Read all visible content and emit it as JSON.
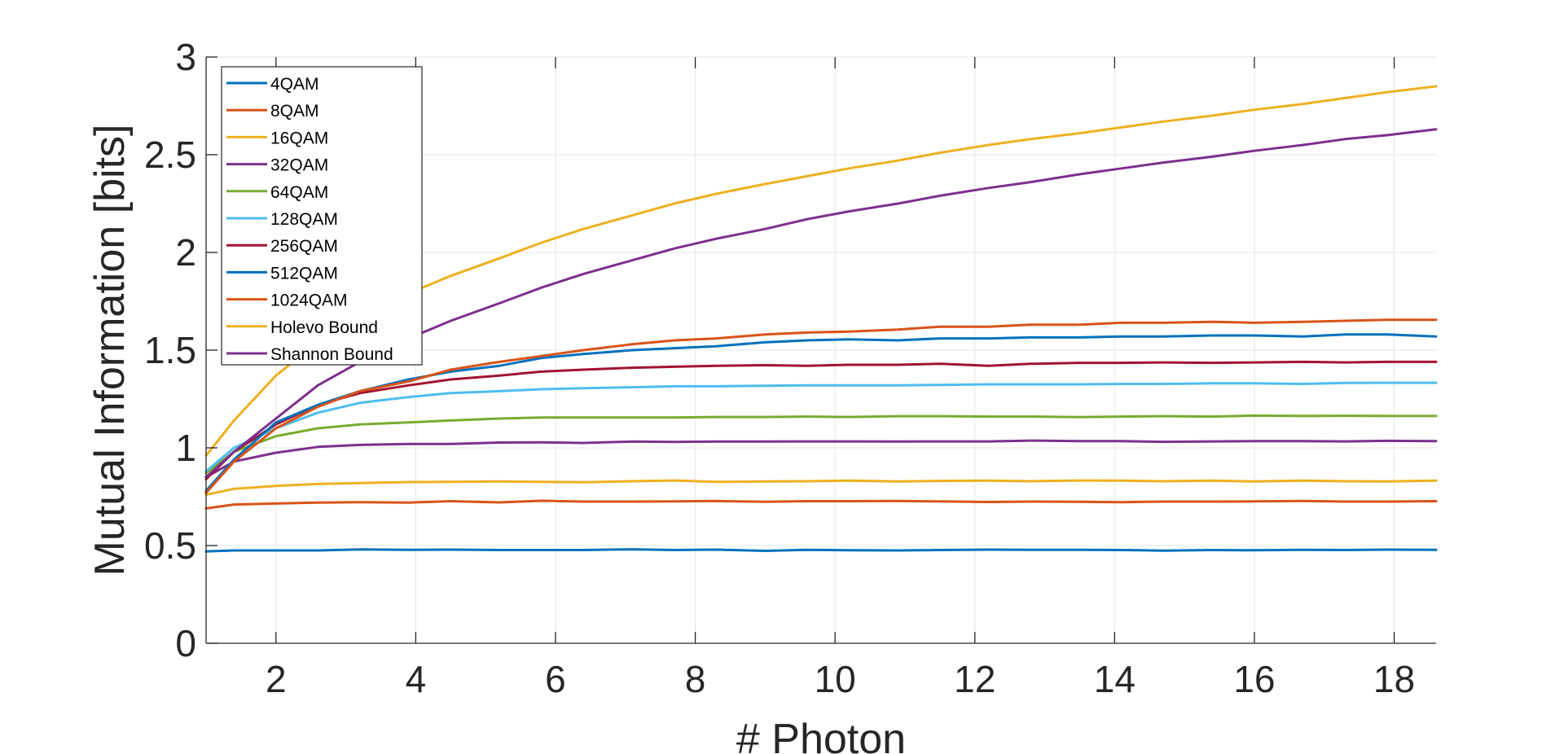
{
  "chart_data": {
    "type": "line",
    "title": "",
    "xlabel": "# Photon",
    "ylabel": "Mutual Information [bits]",
    "xlim": [
      1,
      18.6
    ],
    "ylim": [
      0,
      3
    ],
    "xticks": [
      2,
      4,
      6,
      8,
      10,
      12,
      14,
      16,
      18
    ],
    "yticks": [
      0,
      0.5,
      1,
      1.5,
      2,
      2.5,
      3
    ],
    "ytick_labels": [
      "0",
      "0.5",
      "1",
      "1.5",
      "2",
      "2.5",
      "3"
    ],
    "grid": true,
    "legend_position": "top-left",
    "x": [
      1,
      1.4,
      2,
      2.6,
      3.2,
      3.9,
      4.5,
      5.2,
      5.8,
      6.4,
      7.1,
      7.7,
      8.3,
      9.0,
      9.6,
      10.2,
      10.9,
      11.5,
      12.2,
      12.8,
      13.5,
      14.1,
      14.7,
      15.4,
      16.0,
      16.7,
      17.3,
      17.9,
      18.6
    ],
    "series": [
      {
        "name": "4QAM",
        "color": "#0072BD",
        "values": [
          0.47,
          0.475,
          0.475,
          0.475,
          0.48,
          0.478,
          0.479,
          0.477,
          0.477,
          0.477,
          0.481,
          0.477,
          0.479,
          0.473,
          0.478,
          0.476,
          0.475,
          0.477,
          0.479,
          0.478,
          0.478,
          0.477,
          0.474,
          0.477,
          0.476,
          0.478,
          0.477,
          0.479,
          0.478
        ]
      },
      {
        "name": "8QAM",
        "color": "#D95319",
        "values": [
          0.69,
          0.71,
          0.715,
          0.72,
          0.722,
          0.72,
          0.727,
          0.721,
          0.729,
          0.725,
          0.725,
          0.726,
          0.728,
          0.724,
          0.727,
          0.727,
          0.728,
          0.726,
          0.723,
          0.725,
          0.724,
          0.722,
          0.725,
          0.725,
          0.726,
          0.728,
          0.725,
          0.725,
          0.727
        ]
      },
      {
        "name": "16QAM",
        "color": "#EDB120",
        "values": [
          0.76,
          0.79,
          0.805,
          0.815,
          0.82,
          0.825,
          0.826,
          0.828,
          0.826,
          0.824,
          0.829,
          0.833,
          0.826,
          0.828,
          0.829,
          0.832,
          0.828,
          0.831,
          0.832,
          0.829,
          0.833,
          0.832,
          0.829,
          0.832,
          0.828,
          0.832,
          0.829,
          0.828,
          0.832
        ]
      },
      {
        "name": "32QAM",
        "color": "#7E2F8E",
        "values": [
          0.85,
          0.93,
          0.975,
          1.005,
          1.015,
          1.02,
          1.02,
          1.027,
          1.028,
          1.025,
          1.032,
          1.03,
          1.032,
          1.032,
          1.033,
          1.033,
          1.032,
          1.033,
          1.033,
          1.037,
          1.034,
          1.034,
          1.031,
          1.033,
          1.034,
          1.034,
          1.033,
          1.036,
          1.034
        ]
      },
      {
        "name": "64QAM",
        "color": "#77AC30",
        "values": [
          0.87,
          0.98,
          1.06,
          1.1,
          1.12,
          1.13,
          1.14,
          1.15,
          1.155,
          1.155,
          1.155,
          1.155,
          1.158,
          1.158,
          1.16,
          1.158,
          1.162,
          1.162,
          1.16,
          1.16,
          1.157,
          1.16,
          1.162,
          1.16,
          1.165,
          1.163,
          1.164,
          1.163,
          1.163
        ]
      },
      {
        "name": "128QAM",
        "color": "#4DBEEE",
        "values": [
          0.88,
          1.0,
          1.1,
          1.18,
          1.23,
          1.26,
          1.28,
          1.29,
          1.3,
          1.305,
          1.31,
          1.315,
          1.315,
          1.318,
          1.32,
          1.32,
          1.32,
          1.322,
          1.325,
          1.325,
          1.325,
          1.327,
          1.327,
          1.33,
          1.33,
          1.327,
          1.332,
          1.333,
          1.333
        ]
      },
      {
        "name": "256QAM",
        "color": "#A2142F",
        "values": [
          0.84,
          0.98,
          1.12,
          1.22,
          1.28,
          1.32,
          1.35,
          1.37,
          1.39,
          1.4,
          1.41,
          1.415,
          1.42,
          1.423,
          1.42,
          1.425,
          1.425,
          1.43,
          1.42,
          1.43,
          1.435,
          1.435,
          1.437,
          1.435,
          1.437,
          1.44,
          1.437,
          1.44,
          1.44
        ]
      },
      {
        "name": "512QAM",
        "color": "#0072BD",
        "values": [
          0.78,
          0.94,
          1.13,
          1.22,
          1.29,
          1.35,
          1.39,
          1.42,
          1.46,
          1.48,
          1.5,
          1.51,
          1.52,
          1.54,
          1.55,
          1.555,
          1.55,
          1.56,
          1.56,
          1.565,
          1.565,
          1.57,
          1.57,
          1.575,
          1.575,
          1.57,
          1.58,
          1.58,
          1.57
        ]
      },
      {
        "name": "1024QAM",
        "color": "#D95319",
        "values": [
          0.77,
          0.93,
          1.1,
          1.21,
          1.29,
          1.34,
          1.4,
          1.44,
          1.47,
          1.5,
          1.53,
          1.55,
          1.56,
          1.58,
          1.59,
          1.595,
          1.605,
          1.62,
          1.62,
          1.63,
          1.63,
          1.64,
          1.64,
          1.645,
          1.64,
          1.645,
          1.65,
          1.655,
          1.655
        ]
      },
      {
        "name": "Holevo Bound",
        "color": "#EDB120",
        "values": [
          0.96,
          1.14,
          1.37,
          1.54,
          1.67,
          1.79,
          1.88,
          1.97,
          2.05,
          2.12,
          2.19,
          2.25,
          2.3,
          2.35,
          2.39,
          2.43,
          2.47,
          2.51,
          2.55,
          2.58,
          2.61,
          2.64,
          2.67,
          2.7,
          2.73,
          2.76,
          2.79,
          2.82,
          2.85
        ]
      },
      {
        "name": "Shannon Bound",
        "color": "#7E2F8E",
        "values": [
          0.85,
          0.98,
          1.15,
          1.32,
          1.44,
          1.56,
          1.65,
          1.74,
          1.82,
          1.89,
          1.96,
          2.02,
          2.07,
          2.12,
          2.17,
          2.21,
          2.25,
          2.29,
          2.33,
          2.36,
          2.4,
          2.43,
          2.46,
          2.49,
          2.52,
          2.55,
          2.58,
          2.6,
          2.63
        ]
      }
    ]
  }
}
